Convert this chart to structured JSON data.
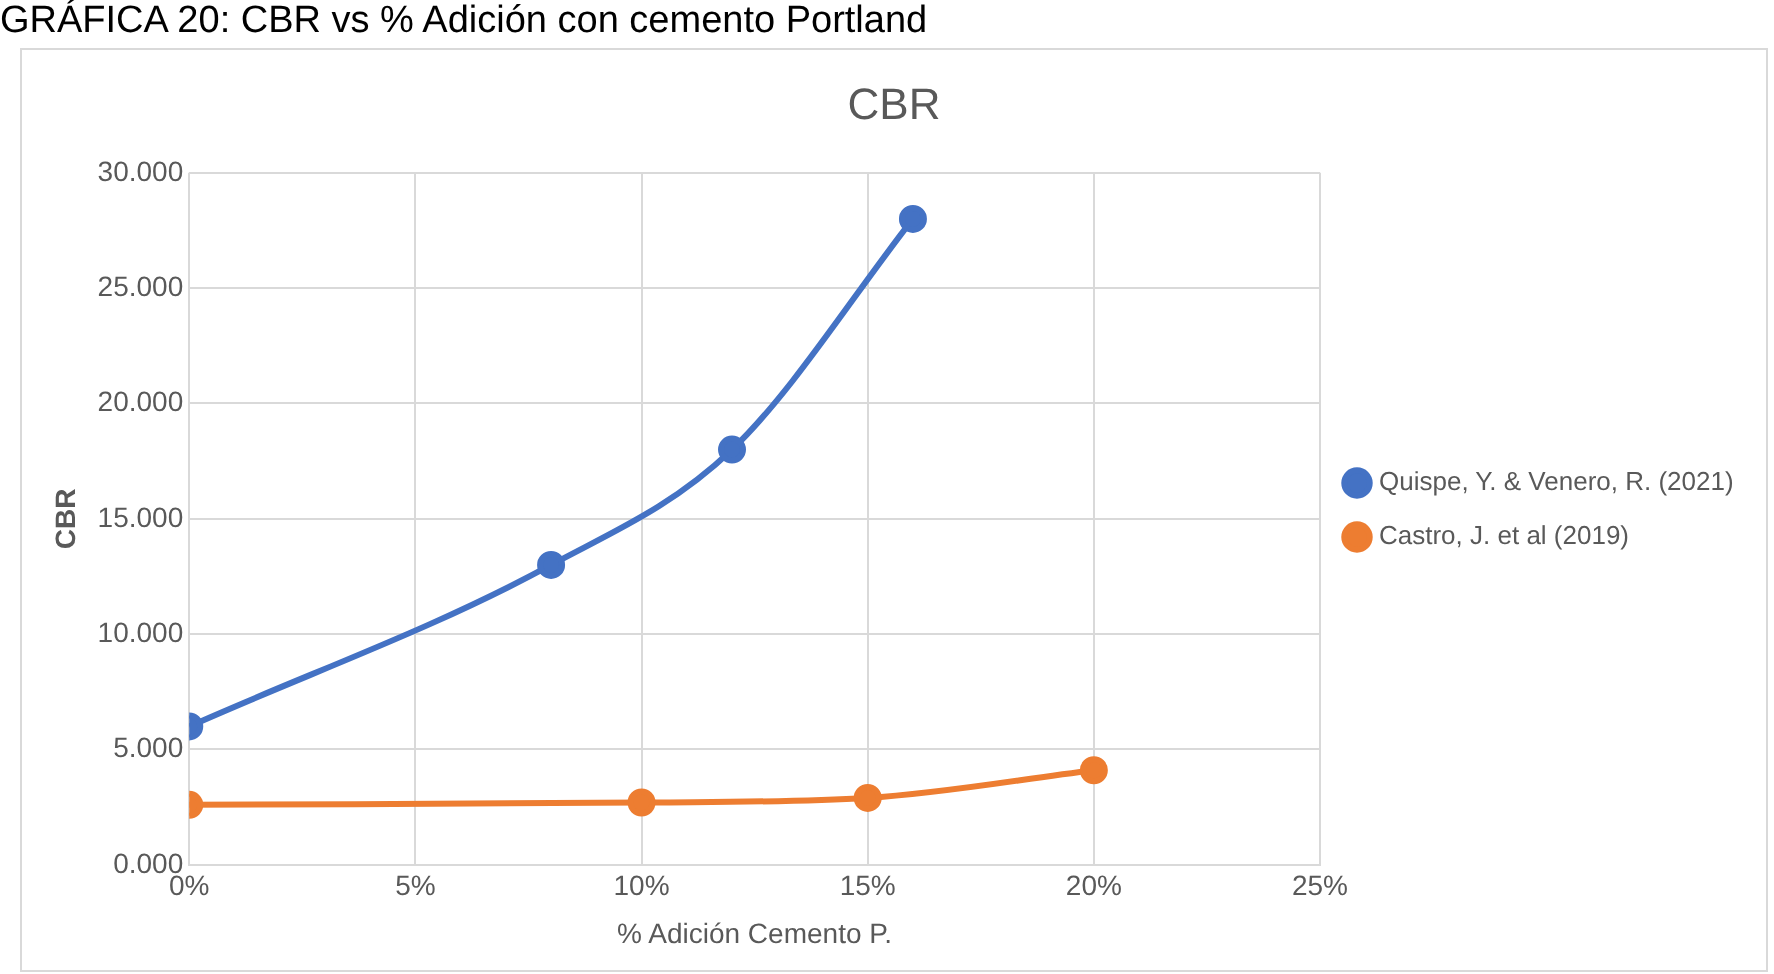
{
  "chart_data": {
    "type": "line",
    "title": "CBR",
    "xlabel": "% Adición Cemento P.",
    "ylabel": "CBR",
    "annotations": [
      "GRÁFICA 20: CBR vs % Adición con cemento Portland"
    ],
    "xlim": [
      0,
      25
    ],
    "xticks": [
      {
        "value": 0,
        "label": "0%"
      },
      {
        "value": 5,
        "label": "5%"
      },
      {
        "value": 10,
        "label": "10%"
      },
      {
        "value": 15,
        "label": "15%"
      },
      {
        "value": 20,
        "label": "20%"
      },
      {
        "value": 25,
        "label": "25%"
      }
    ],
    "ylim": [
      0,
      30
    ],
    "yticks": [
      {
        "value": 0,
        "label": "0.000"
      },
      {
        "value": 5,
        "label": "5.000"
      },
      {
        "value": 10,
        "label": "10.000"
      },
      {
        "value": 15,
        "label": "15.000"
      },
      {
        "value": 20,
        "label": "20.000"
      },
      {
        "value": 25,
        "label": "25.000"
      },
      {
        "value": 30,
        "label": "30.000"
      }
    ],
    "series": [
      {
        "name": "Quispe, Y. & Venero, R. (2021)",
        "color": "#4472c4",
        "x": [
          0,
          8,
          12,
          16
        ],
        "values": [
          6,
          13,
          18,
          28
        ]
      },
      {
        "name": "Castro, J. et al (2019)",
        "color": "#ed7d31",
        "x": [
          0,
          10,
          15,
          20
        ],
        "values": [
          2.6,
          2.7,
          2.9,
          4.1
        ]
      }
    ],
    "grid": true,
    "legend": "right",
    "marker": "circle",
    "line_style": "solid"
  }
}
